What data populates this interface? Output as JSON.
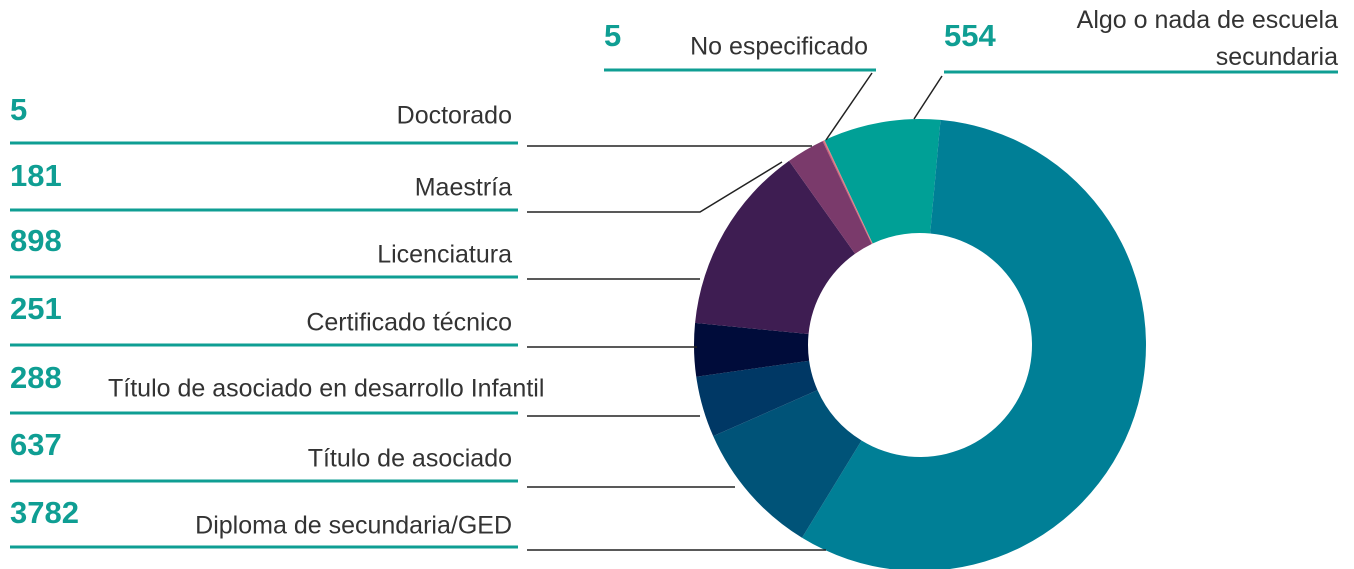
{
  "chart_data": {
    "type": "donut",
    "categories": [
      "Algo o nada de escuela secundaria",
      "Diploma de secundaria/GED",
      "Título de asociado",
      "Título de asociado en desarrollo Infantil",
      "Certificado técnico",
      "Licenciatura",
      "Maestría",
      "Doctorado",
      "No especificado"
    ],
    "values": [
      554,
      3782,
      637,
      288,
      251,
      898,
      181,
      5,
      5
    ],
    "colors": [
      "#00a096",
      "#007f96",
      "#005378",
      "#003865",
      "#000c3a",
      "#3e1d52",
      "#7a3a6b",
      "#c0577b",
      "#e07e7e"
    ]
  }
}
